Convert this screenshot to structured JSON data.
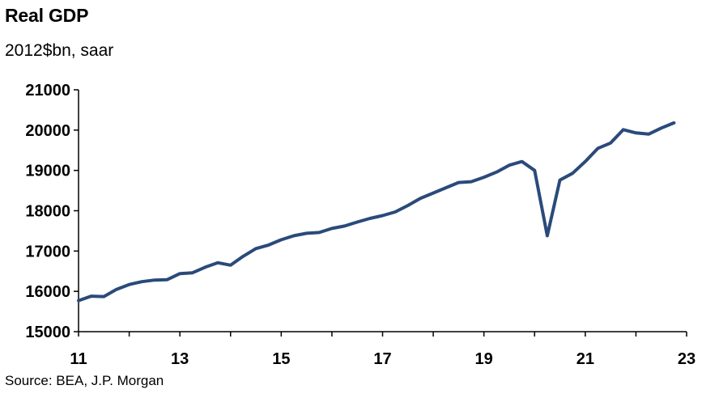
{
  "title": "Real GDP",
  "subtitle": "2012$bn, saar",
  "source": "Source: BEA, J.P. Morgan",
  "chart_data": {
    "type": "line",
    "title": "Real GDP",
    "subtitle": "2012$bn, saar",
    "ylim": [
      15000,
      21000
    ],
    "yticks": [
      "15000",
      "16000",
      "17000",
      "18000",
      "19000",
      "20000",
      "21000"
    ],
    "xlim": [
      2011,
      2023
    ],
    "xticks": [
      "11",
      "13",
      "15",
      "17",
      "19",
      "21",
      "23"
    ],
    "grid": false,
    "line_color": "#2a4a7a",
    "series": [
      {
        "x": [
          2011.0,
          2011.25,
          2011.5,
          2011.75,
          2012.0,
          2012.25,
          2012.5,
          2012.75,
          2013.0,
          2013.25,
          2013.5,
          2013.75,
          2014.0,
          2014.25,
          2014.5,
          2014.75,
          2015.0,
          2015.25,
          2015.5,
          2015.75,
          2016.0,
          2016.25,
          2016.5,
          2016.75,
          2017.0,
          2017.25,
          2017.5,
          2017.75,
          2018.0,
          2018.25,
          2018.5,
          2018.75,
          2019.0,
          2019.25,
          2019.5,
          2019.75,
          2020.0,
          2020.25,
          2020.5,
          2020.75,
          2021.0,
          2021.25,
          2021.5,
          2021.75,
          2022.0,
          2022.25,
          2022.5,
          2022.75
        ],
        "values": [
          15770,
          15880,
          15870,
          16050,
          16170,
          16240,
          16280,
          16290,
          16440,
          16460,
          16600,
          16710,
          16650,
          16870,
          17060,
          17150,
          17280,
          17380,
          17440,
          17460,
          17560,
          17620,
          17720,
          17810,
          17880,
          17970,
          18130,
          18310,
          18440,
          18570,
          18700,
          18720,
          18830,
          18960,
          19130,
          19220,
          19000,
          17380,
          18760,
          18930,
          19220,
          19550,
          19680,
          20010,
          19930,
          19900,
          20050,
          20180
        ]
      }
    ]
  }
}
